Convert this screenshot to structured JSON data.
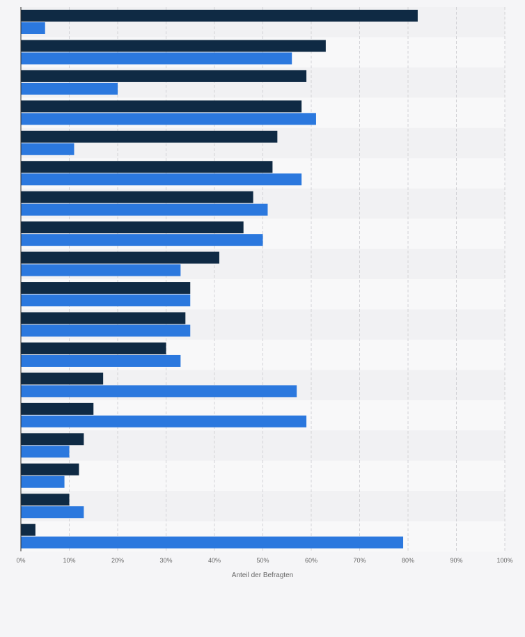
{
  "chart_data": {
    "type": "bar",
    "orientation": "horizontal",
    "categories": [
      "",
      "",
      "",
      "",
      "",
      "",
      "",
      "",
      "",
      "",
      "",
      "",
      "",
      "",
      "",
      "",
      "",
      ""
    ],
    "series": [
      {
        "color": "#0f2a44",
        "values": [
          82,
          63,
          59,
          58,
          53,
          52,
          48,
          46,
          41,
          35,
          34,
          30,
          17,
          15,
          13,
          12,
          10,
          3
        ]
      },
      {
        "color": "#2b78de",
        "values": [
          5,
          56,
          20,
          61,
          11,
          58,
          51,
          50,
          33,
          35,
          35,
          33,
          57,
          59,
          10,
          9,
          13,
          79
        ]
      }
    ],
    "xlim": [
      0,
      100
    ],
    "xticks": [
      "0%",
      "10%",
      "20%",
      "30%",
      "40%",
      "50%",
      "60%",
      "70%",
      "80%",
      "90%",
      "100%"
    ],
    "xlabel": "Anteil der Befragten",
    "grid": "vertical-dashed",
    "row_banding": true
  }
}
